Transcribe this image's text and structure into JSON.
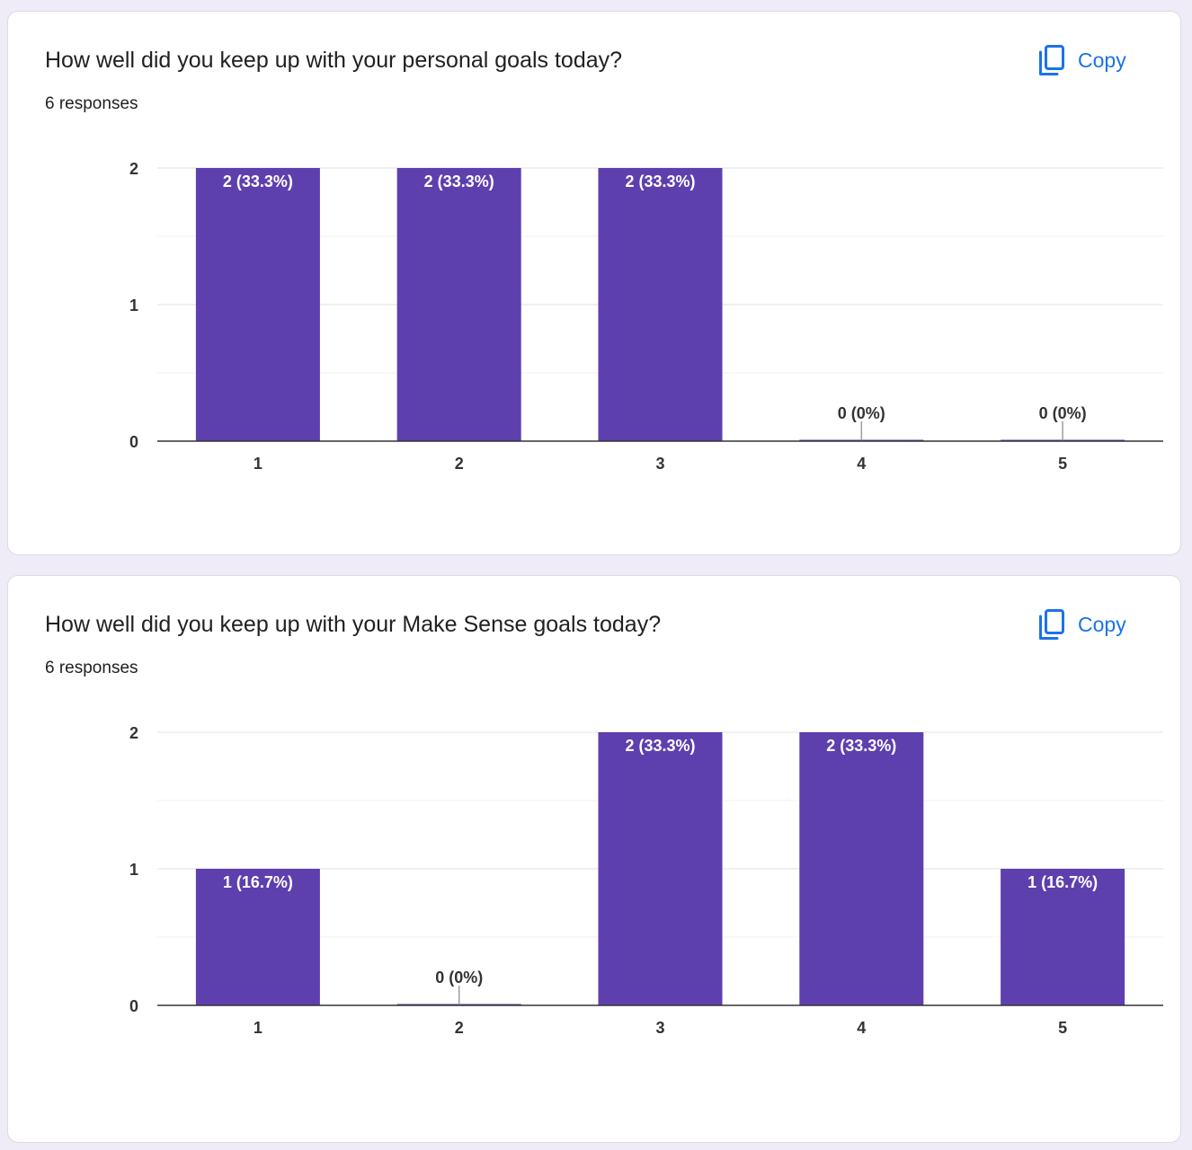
{
  "accent_color": "#5e3fae",
  "link_color": "#1a73e8",
  "questions": [
    {
      "title": "How well did you keep up with your personal goals today?",
      "responses": "6 responses",
      "copy_label": "Copy",
      "copy_icon": "copy-icon",
      "chart_data": {
        "type": "bar",
        "categories": [
          "1",
          "2",
          "3",
          "4",
          "5"
        ],
        "values": [
          2,
          2,
          2,
          0,
          0
        ],
        "data_labels": [
          "2 (33.3%)",
          "2 (33.3%)",
          "2 (33.3%)",
          "0 (0%)",
          "0 (0%)"
        ],
        "y_ticks": [
          "0",
          "1",
          "2"
        ],
        "ylim": [
          0,
          2
        ],
        "grid": true
      }
    },
    {
      "title": "How well did you keep up with your Make Sense goals today?",
      "responses": "6 responses",
      "copy_label": "Copy",
      "copy_icon": "copy-icon",
      "chart_data": {
        "type": "bar",
        "categories": [
          "1",
          "2",
          "3",
          "4",
          "5"
        ],
        "values": [
          1,
          0,
          2,
          2,
          1
        ],
        "data_labels": [
          "1 (16.7%)",
          "0 (0%)",
          "2 (33.3%)",
          "2 (33.3%)",
          "1 (16.7%)"
        ],
        "y_ticks": [
          "0",
          "1",
          "2"
        ],
        "ylim": [
          0,
          2
        ],
        "grid": true
      }
    }
  ]
}
